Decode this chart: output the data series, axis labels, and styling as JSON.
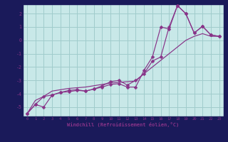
{
  "xlabel": "Windchill (Refroidissement éolien,°C)",
  "background_color": "#c8e8e8",
  "grid_color": "#a0cccc",
  "line_color": "#883388",
  "fig_bg": "#1a1a5a",
  "xlim": [
    -0.5,
    23.5
  ],
  "ylim": [
    -5.7,
    2.7
  ],
  "yticks": [
    -5,
    -4,
    -3,
    -2,
    -1,
    0,
    1,
    2
  ],
  "xticks": [
    0,
    1,
    2,
    3,
    4,
    5,
    6,
    7,
    8,
    9,
    10,
    11,
    12,
    13,
    14,
    15,
    16,
    17,
    18,
    19,
    20,
    21,
    22,
    23
  ],
  "line1_x": [
    0,
    1,
    2,
    3,
    4,
    5,
    6,
    7,
    8,
    9,
    10,
    11,
    12,
    13,
    14,
    15,
    16,
    17,
    18,
    19,
    20,
    21,
    22,
    23
  ],
  "line1_y": [
    -5.5,
    -4.5,
    -4.2,
    -3.8,
    -3.7,
    -3.6,
    -3.55,
    -3.5,
    -3.4,
    -3.3,
    -3.2,
    -3.15,
    -3.1,
    -3.05,
    -2.5,
    -2.0,
    -1.5,
    -1.0,
    -0.5,
    0.0,
    0.3,
    0.5,
    0.3,
    0.3
  ],
  "line2_x": [
    0,
    1,
    2,
    3,
    4,
    5,
    6,
    7,
    8,
    9,
    10,
    11,
    12,
    13,
    14,
    15,
    16,
    17,
    18,
    19,
    20,
    21,
    22,
    23
  ],
  "line2_y": [
    -5.5,
    -4.8,
    -5.0,
    -4.1,
    -3.9,
    -3.85,
    -3.75,
    -3.8,
    -3.65,
    -3.5,
    -3.3,
    -3.25,
    -3.5,
    -3.5,
    -2.25,
    -1.25,
    1.0,
    0.85,
    2.6,
    2.0,
    0.55,
    1.05,
    0.4,
    0.3
  ],
  "line3_x": [
    0,
    1,
    2,
    3,
    4,
    5,
    6,
    7,
    8,
    9,
    10,
    11,
    12,
    13,
    14,
    15,
    16,
    17,
    18,
    19,
    20,
    21,
    22,
    23
  ],
  "line3_y": [
    -5.5,
    -4.8,
    -4.2,
    -4.1,
    -3.9,
    -3.75,
    -3.7,
    -3.8,
    -3.65,
    -3.4,
    -3.1,
    -3.0,
    -3.35,
    -3.0,
    -2.5,
    -1.55,
    -1.25,
    1.0,
    2.6,
    2.0,
    0.55,
    1.05,
    0.4,
    0.3
  ]
}
